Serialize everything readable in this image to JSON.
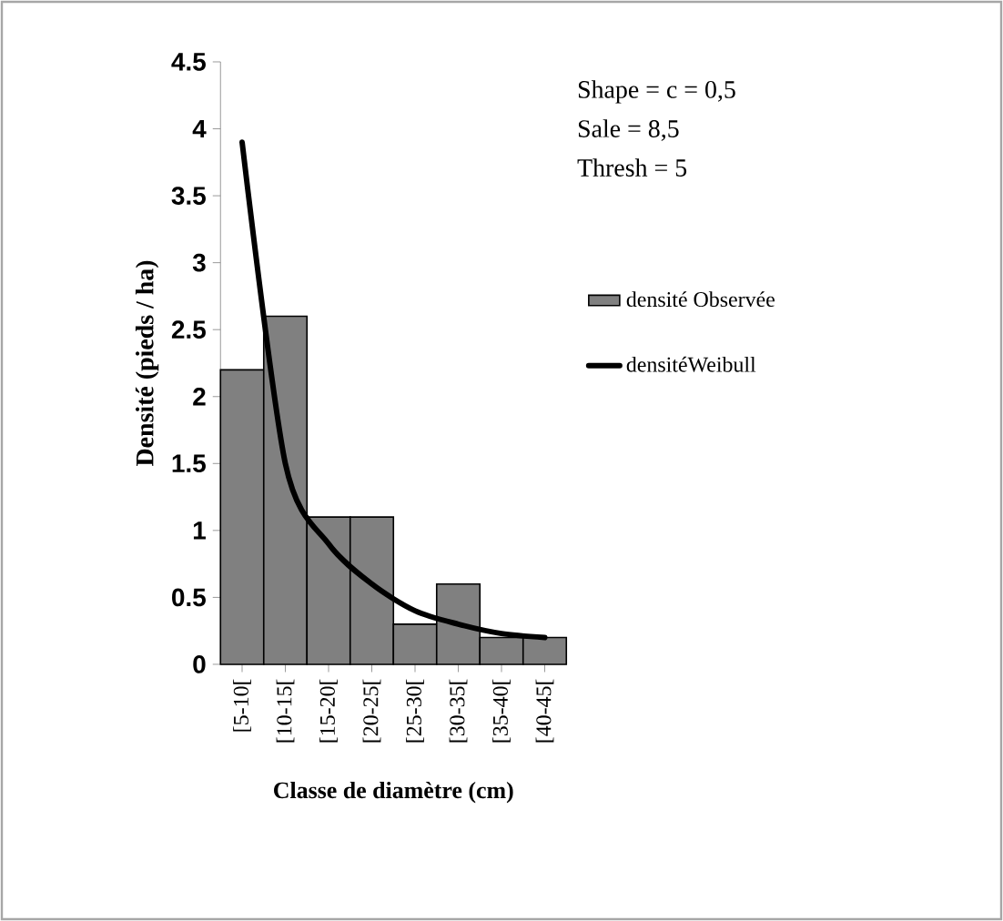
{
  "chart_data": {
    "type": "bar",
    "xlabel": "Classe de diamètre (cm)",
    "ylabel": "Densité  (pieds / ha)",
    "categories": [
      "[5-10[",
      "[10-15[",
      "[15-20[",
      "[20-25[",
      "[25-30[",
      "[30-35[",
      "[35-40[",
      "[40-45["
    ],
    "series": [
      {
        "name": "densité Observée",
        "color": "#808080",
        "values": [
          2.2,
          2.6,
          1.1,
          1.1,
          0.3,
          0.6,
          0.2,
          0.2
        ]
      },
      {
        "name": "densitéWeibull",
        "type": "line",
        "color": "#000000",
        "values": [
          3.9,
          1.5,
          0.9,
          0.6,
          0.4,
          0.3,
          0.23,
          0.2
        ]
      }
    ],
    "ylim": [
      0,
      4.5
    ],
    "yticks": [
      0,
      0.5,
      1,
      1.5,
      2,
      2.5,
      3,
      3.5,
      4,
      4.5
    ],
    "annotations": [
      "Shape = c = 0,5",
      "Sale = 8,5",
      "Thresh = 5"
    ],
    "legend": "right",
    "grid": false
  }
}
